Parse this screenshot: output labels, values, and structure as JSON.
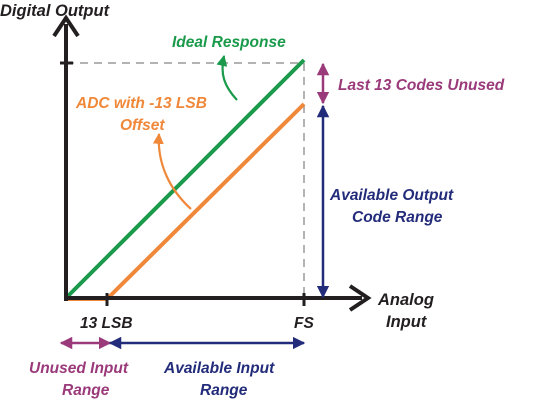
{
  "axes": {
    "y_label": "Digital Output",
    "x_label_line1": "Analog",
    "x_label_line2": "Input"
  },
  "ticks": {
    "lsb": "13 LSB",
    "fs": "FS"
  },
  "labels": {
    "ideal": "Ideal Response",
    "offset_line1": "ADC with -13 LSB",
    "offset_line2": "Offset",
    "last_codes": "Last 13 Codes Unused",
    "out_range_line1": "Available Output",
    "out_range_line2": "Code Range",
    "unused_line1": "Unused Input",
    "unused_line2": "Range",
    "avail_in_line1": "Available Input",
    "avail_in_line2": "Range"
  },
  "colors": {
    "ideal": "#1a9a4a",
    "offset": "#f0883a",
    "purple": "#9a3a7a",
    "navy": "#232c7a",
    "axis": "#231f20",
    "dashed": "#9a9a9a"
  }
}
